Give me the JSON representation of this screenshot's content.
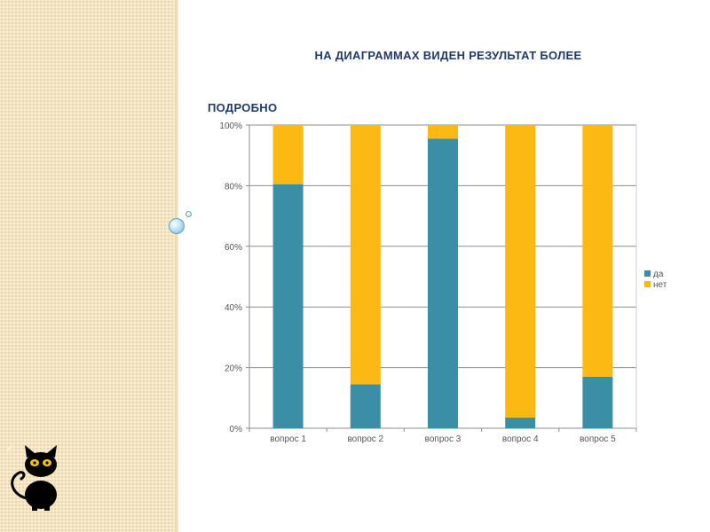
{
  "slide": {
    "title_line1": "НА ДИАГРАММАХ ВИДЕН РЕЗУЛЬТАТ БОЛЕЕ",
    "title_line2": "ПОДРОБНО"
  },
  "colors": {
    "da": "#3a8fa6",
    "net": "#fdb913",
    "grid": "#8c8c8c",
    "panel": "#f6e6c2"
  },
  "chart_data": {
    "type": "bar",
    "stacked": true,
    "percent": true,
    "categories": [
      "вопрос 1",
      "вопрос 2",
      "вопрос 3",
      "вопрос 4",
      "вопрос 5"
    ],
    "series": [
      {
        "name": "да",
        "values": [
          80.5,
          14.5,
          95.5,
          3.5,
          17
        ]
      },
      {
        "name": "нет",
        "values": [
          19.5,
          85.5,
          4.5,
          96.5,
          83
        ]
      }
    ],
    "yticks": [
      "0%",
      "20%",
      "40%",
      "60%",
      "80%",
      "100%"
    ],
    "ylim": [
      0,
      100
    ],
    "grid": true,
    "legend": "right"
  }
}
